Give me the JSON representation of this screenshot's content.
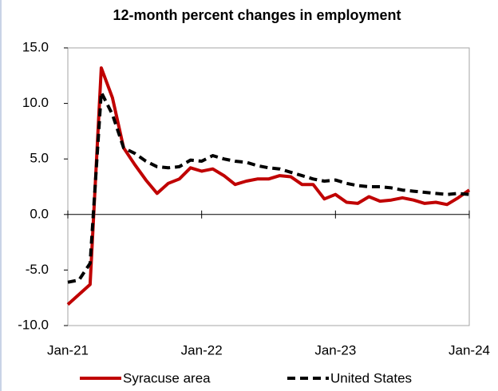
{
  "chart_data": {
    "type": "line",
    "title": "12-month percent changes in employment",
    "categories": [
      "Jan-21",
      null,
      null,
      null,
      null,
      null,
      null,
      null,
      null,
      null,
      null,
      null,
      "Jan-22",
      null,
      null,
      null,
      null,
      null,
      null,
      null,
      null,
      null,
      null,
      null,
      "Jan-23",
      null,
      null,
      null,
      null,
      null,
      null,
      null,
      null,
      null,
      null,
      null,
      "Jan-24"
    ],
    "series": [
      {
        "name": "Syracuse area",
        "color": "#c00000",
        "dash": "solid",
        "values": [
          -8.1,
          -7.2,
          -6.3,
          13.2,
          10.5,
          6.0,
          4.5,
          3.1,
          1.9,
          2.8,
          3.2,
          4.2,
          3.9,
          4.1,
          3.5,
          2.7,
          3.0,
          3.2,
          3.2,
          3.5,
          3.4,
          2.7,
          2.7,
          1.4,
          1.8,
          1.1,
          1.0,
          1.6,
          1.2,
          1.3,
          1.5,
          1.3,
          1.0,
          1.1,
          0.9,
          1.5,
          2.2
        ]
      },
      {
        "name": "United States",
        "color": "#000000",
        "dash": "dashed",
        "values": [
          -6.1,
          -5.9,
          -4.4,
          11.0,
          9.0,
          6.0,
          5.5,
          4.8,
          4.3,
          4.2,
          4.3,
          4.9,
          4.8,
          5.3,
          5.0,
          4.8,
          4.7,
          4.4,
          4.2,
          4.1,
          3.8,
          3.5,
          3.2,
          3.0,
          3.1,
          2.8,
          2.6,
          2.5,
          2.5,
          2.4,
          2.2,
          2.1,
          2.0,
          1.9,
          1.8,
          1.9,
          1.8
        ]
      }
    ],
    "ylim": [
      -10,
      15
    ],
    "yticks": [
      {
        "value": -10,
        "label": "-10.0"
      },
      {
        "value": -5,
        "label": "-5.0"
      },
      {
        "value": 0,
        "label": "0.0"
      },
      {
        "value": 5,
        "label": "5.0"
      },
      {
        "value": 10,
        "label": "10.0"
      },
      {
        "value": 15,
        "label": "15.0"
      }
    ],
    "grid": false,
    "legend": "bottom"
  }
}
